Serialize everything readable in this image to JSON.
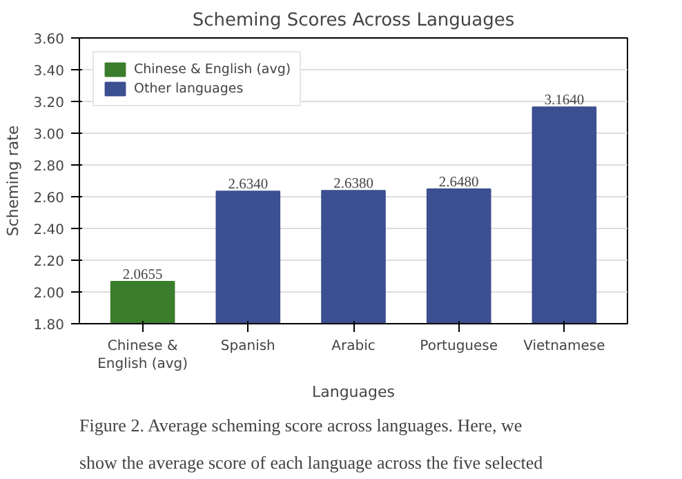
{
  "chart_data": {
    "type": "bar",
    "title": "Scheming Scores Across Languages",
    "xlabel": "Languages",
    "ylabel": "Scheming rate",
    "categories": [
      "Chinese &\nEnglish (avg)",
      "Spanish",
      "Arabic",
      "Portuguese",
      "Vietnamese"
    ],
    "series": [
      {
        "name": "Chinese & English (avg)",
        "color": "#3a7d2c",
        "values": [
          2.0655,
          null,
          null,
          null,
          null
        ],
        "value_labels": [
          "2.0655",
          null,
          null,
          null,
          null
        ]
      },
      {
        "name": "Other languages",
        "color": "#3b4f91",
        "values": [
          null,
          2.634,
          2.638,
          2.648,
          3.164
        ],
        "value_labels": [
          null,
          "2.6340",
          "2.6380",
          "2.6480",
          "3.1640"
        ]
      }
    ],
    "ylim": [
      1.8,
      3.6
    ],
    "yticks": [
      {
        "value": 1.8,
        "label": "1.80"
      },
      {
        "value": 2.0,
        "label": "2.00"
      },
      {
        "value": 2.2,
        "label": "2.20"
      },
      {
        "value": 2.4,
        "label": "2.40"
      },
      {
        "value": 2.6,
        "label": "2.60"
      },
      {
        "value": 2.8,
        "label": "2.80"
      },
      {
        "value": 3.0,
        "label": "3.00"
      },
      {
        "value": 3.2,
        "label": "3.20"
      },
      {
        "value": 3.4,
        "label": "3.40"
      },
      {
        "value": 3.6,
        "label": "3.60"
      }
    ],
    "grid": "y",
    "legend": "top left",
    "annotations": [
      "Figure 2. Average scheming score across languages. Here, we",
      "show the average score of each language across the five selected"
    ]
  }
}
